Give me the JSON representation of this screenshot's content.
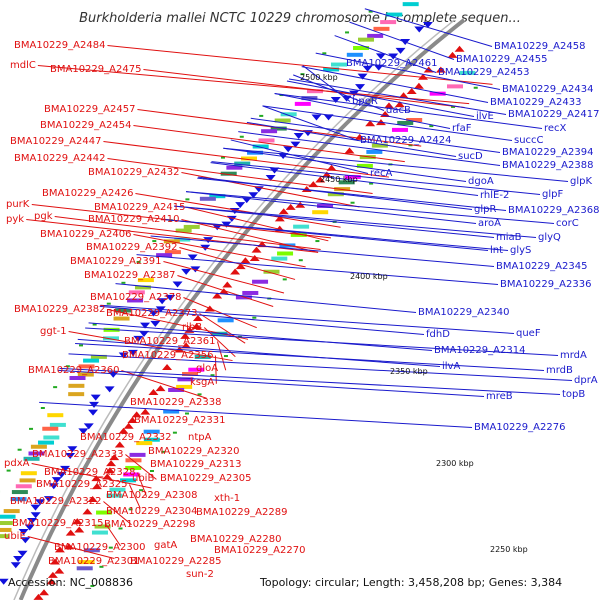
{
  "header": {
    "title": "Burkholderia mallei NCTC 10229 chromosome I, complete sequen..."
  },
  "footer": {
    "accession": "Accession: NC_008836",
    "summary": "Topology: circular; Length: 3,458,208 bp; Genes: 3,384"
  },
  "colors": {
    "forward_strand": "#e01010",
    "reverse_strand": "#1010dd",
    "backbone": "#8a8a8a",
    "tick": "#22aa22"
  },
  "scale_labels": [
    "2500 kbp",
    "2450 kbp",
    "2400 kbp",
    "2350 kbp",
    "2300 kbp",
    "2250 kbp"
  ],
  "left_labels": [
    "BMA10229_A2484",
    "mdlC",
    "BMA10229_A2475",
    "BMA10229_A2457",
    "BMA10229_A2454",
    "BMA10229_A2447",
    "BMA10229_A2442",
    "BMA10229_A2432",
    "BMA10229_A2426",
    "purK",
    "BMA10229_A2415",
    "pgk",
    "pyk",
    "BMA10229_A2410",
    "BMA10229_A2406",
    "BMA10229_A2392",
    "BMA10229_A2391",
    "BMA10229_A2387",
    "BMA10229_A2378",
    "BMA10229_A2382",
    "BMA10229_A2373",
    "ggt-1",
    "ribB",
    "BMA10229_A2361",
    "BMA10229_A2356",
    "gloA",
    "BMA10229_A2360",
    "ksgA",
    "BMA10229_A2338",
    "BMA10229_A2331",
    "ntpA",
    "BMA10229_A2332",
    "BMA10229_A2320",
    "pdxA",
    "BMA10229_A2333",
    "BMA10229_A2313",
    "BMA10229_A2328",
    "ubiB",
    "BMA10229_A2305",
    "BMA10229_A2325",
    "BMA10229_A2308",
    "xth-1",
    "BMA10229_A2322",
    "BMA10229_A2304",
    "BMA10229_A2289",
    "BMA10229_A2315",
    "BMA10229_A2298",
    "ubiE",
    "BMA10229_A2280",
    "BMA10229_A2300",
    "gatA",
    "BMA10229_A2270",
    "BMA10229_A2301",
    "BMA10229_A2285",
    "sun-2"
  ],
  "right_labels": [
    "BMA10229_A2458",
    "BMA10229_A2461",
    "BMA10229_A2455",
    "BMA10229_A2453",
    "BMA10229_A2434",
    "bpeR",
    "BMA10229_A2433",
    "dacB",
    "ilvE",
    "BMA10229_A2417",
    "rfaF",
    "recX",
    "BMA10229_A2424",
    "succC",
    "sucD",
    "BMA10229_A2394",
    "BMA10229_A2388",
    "recA",
    "dgoA",
    "glpK",
    "rhlE-2",
    "glpF",
    "glpR",
    "BMA10229_A2368",
    "aroA",
    "corC",
    "miaB",
    "glyQ",
    "lnt",
    "glyS",
    "BMA10229_A2345",
    "BMA10229_A2336",
    "BMA10229_A2340",
    "fdhD",
    "queF",
    "BMA10229_A2314",
    "mrdA",
    "ilvA",
    "mrdB",
    "dprA",
    "mreB",
    "topB",
    "BMA10229_A2276"
  ]
}
